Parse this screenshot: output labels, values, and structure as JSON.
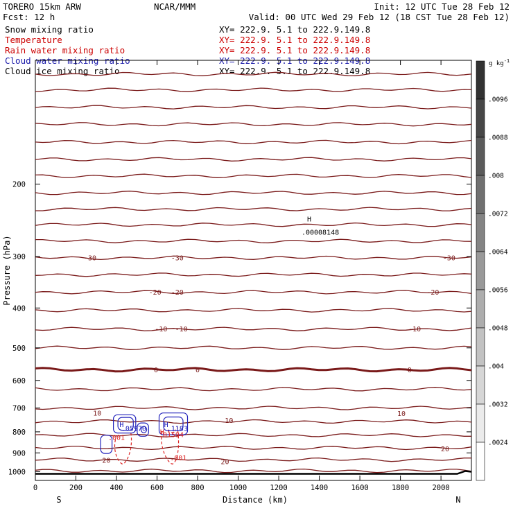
{
  "header": {
    "left_line1": "TORERO  15km ARW",
    "center_line1": "NCAR/MMM",
    "right_line1": "Init: 12 UTC Tue 28 Feb 12",
    "left_line2": "Fcst:    12 h",
    "right_line2": "Valid: 00 UTC Wed 29 Feb 12 (18 CST Tue 28 Feb 12)"
  },
  "legend": [
    {
      "name": "Snow mixing ratio",
      "xy": "XY= 222.9.  5.1 to 222.9.149.8",
      "color": "#000000",
      "xy_color": "#000000"
    },
    {
      "name": "Temperature",
      "xy": "XY= 222.9.  5.1 to 222.9.149.8",
      "color": "#cc0000",
      "xy_color": "#cc0000"
    },
    {
      "name": "Rain water mixing ratio",
      "xy": "XY= 222.9.  5.1 to 222.9.149.8",
      "color": "#cc0000",
      "xy_color": "#cc0000"
    },
    {
      "name": "Cloud water mixing ratio",
      "xy": "XY= 222.9.  5.1 to 222.9.149.8",
      "color": "#1a1aaa",
      "xy_color": "#1a1aaa"
    },
    {
      "name": "Cloud ice mixing ratio",
      "xy": "XY= 222.9.  5.1 to 222.9.149.8",
      "color": "#000000",
      "xy_color": "#000000"
    }
  ],
  "colors": {
    "temperature": "#7a1a1a",
    "rain": "#dd2222",
    "cloud_water": "#2222bb",
    "terrain": "#000000"
  },
  "chart_data": {
    "type": "contour",
    "xlabel": "Distance (km)",
    "ylabel": "Pressure (hPa)",
    "xlim": [
      0,
      2150
    ],
    "ylim": [
      1050,
      100
    ],
    "y_scale": "log",
    "x_ticks": [
      0,
      200,
      400,
      600,
      800,
      1000,
      1200,
      1400,
      1600,
      1800,
      2000
    ],
    "y_ticks": [
      200,
      300,
      400,
      500,
      600,
      700,
      800,
      900,
      1000
    ],
    "x_end_labels": {
      "left": "S",
      "right": "N"
    },
    "colorbar": {
      "units": "g kg",
      "units_exp": "-1",
      "ticks": [
        ".0096",
        ".0088",
        ".008",
        ".0072",
        ".0064",
        ".0056",
        ".0048",
        ".004",
        ".0032",
        ".0024"
      ]
    },
    "temperature_contours": [
      {
        "p": 108
      },
      {
        "p": 118
      },
      {
        "p": 130
      },
      {
        "p": 143
      },
      {
        "p": 158
      },
      {
        "p": 174
      },
      {
        "p": 191
      },
      {
        "p": 210
      },
      {
        "p": 230
      },
      {
        "p": 251
      },
      {
        "p": 275
      },
      {
        "p": 302
      },
      {
        "p": 332
      },
      {
        "p": 366
      },
      {
        "p": 405
      },
      {
        "p": 450
      },
      {
        "p": 500
      },
      {
        "p": 565,
        "bold": true
      },
      {
        "p": 630
      },
      {
        "p": 700
      },
      {
        "p": 755
      },
      {
        "p": 815
      },
      {
        "p": 875
      },
      {
        "p": 935
      },
      {
        "p": 995
      }
    ],
    "temperature_labels": [
      {
        "text": "-30",
        "x": 270,
        "p": 302
      },
      {
        "text": "-30",
        "x": 700,
        "p": 302
      },
      {
        "text": "-30",
        "x": 2040,
        "p": 302
      },
      {
        "text": "-20",
        "x": 590,
        "p": 366
      },
      {
        "text": "-20",
        "x": 700,
        "p": 366
      },
      {
        "text": "-20",
        "x": 1960,
        "p": 366
      },
      {
        "text": "-10",
        "x": 620,
        "p": 450
      },
      {
        "text": "-10",
        "x": 720,
        "p": 450
      },
      {
        "text": "-10",
        "x": 1870,
        "p": 450
      },
      {
        "text": "0",
        "x": 595,
        "p": 565
      },
      {
        "text": "0",
        "x": 800,
        "p": 565
      },
      {
        "text": "0",
        "x": 1845,
        "p": 565
      },
      {
        "text": "10",
        "x": 305,
        "p": 720
      },
      {
        "text": "10",
        "x": 955,
        "p": 750
      },
      {
        "text": "10",
        "x": 1805,
        "p": 722
      },
      {
        "text": "20",
        "x": 2020,
        "p": 880
      },
      {
        "text": "20",
        "x": 350,
        "p": 938
      },
      {
        "text": "20",
        "x": 935,
        "p": 945
      }
    ],
    "annotations": [
      {
        "text": "H",
        "x": 1350,
        "p": 243,
        "color": "#000000"
      },
      {
        "text": ".00008148",
        "x": 1405,
        "p": 262,
        "color": "#000000"
      },
      {
        "text": "H",
        "x": 425,
        "p": 768,
        "color": "#2222bb"
      },
      {
        "text": ".05970",
        "x": 485,
        "p": 785,
        "color": "#2222bb"
      },
      {
        "text": "H",
        "x": 645,
        "p": 768,
        "color": "#2222bb"
      },
      {
        "text": ".1183",
        "x": 700,
        "p": 785,
        "color": "#2222bb"
      },
      {
        "text": "H",
        "x": 625,
        "p": 800,
        "color": "#dd2222"
      },
      {
        "text": ".01594",
        "x": 670,
        "p": 812,
        "color": "#dd2222"
      },
      {
        "text": ".001",
        "x": 400,
        "p": 825,
        "color": "#dd2222"
      },
      {
        "text": ".001",
        "x": 705,
        "p": 925,
        "color": "#dd2222"
      }
    ]
  }
}
